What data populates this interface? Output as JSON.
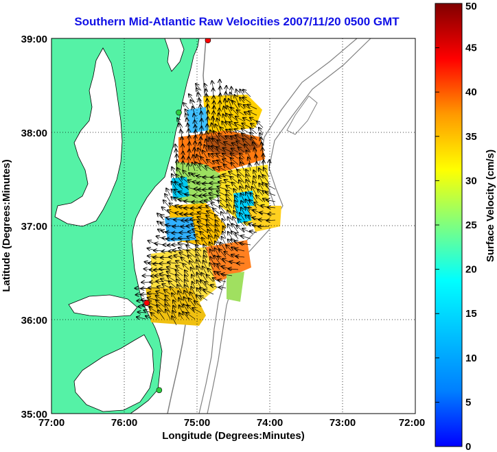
{
  "title": "Southern Mid-Atlantic Raw Velocities 2007/11/20 0500 GMT",
  "map": {
    "x_label": "Longitude (Degrees:Minutes)",
    "y_label": "Latitude (Degrees:Minutes)",
    "x_ticks": [
      "77:00",
      "76:00",
      "75:00",
      "74:00",
      "73:00",
      "72:00"
    ],
    "y_ticks": [
      "39:00",
      "38:00",
      "37:00",
      "36:00",
      "35:00"
    ],
    "lon_range_deg_west": [
      77,
      72
    ],
    "lat_range_deg_north": [
      35,
      39
    ],
    "grid": "dotted",
    "land_color": "#55f2a6",
    "coastline_color": "#000000",
    "bathymetry_color": "#808080"
  },
  "colorbar": {
    "label": "Surface Velocity (cm/s)",
    "ticks": [
      "50",
      "45",
      "40",
      "35",
      "30",
      "25",
      "20",
      "15",
      "10",
      "5",
      "0"
    ],
    "range": [
      0,
      50
    ],
    "colormap": "jet",
    "position": "right"
  },
  "stations": [
    {
      "lon": -74.85,
      "lat": 38.98,
      "color": "#ff0000"
    },
    {
      "lon": -75.25,
      "lat": 38.21,
      "color": "#2ecc40"
    },
    {
      "lon": -75.69,
      "lat": 36.18,
      "color": "#ff0000"
    },
    {
      "lon": -75.52,
      "lat": 35.25,
      "color": "#2ecc40"
    }
  ]
}
